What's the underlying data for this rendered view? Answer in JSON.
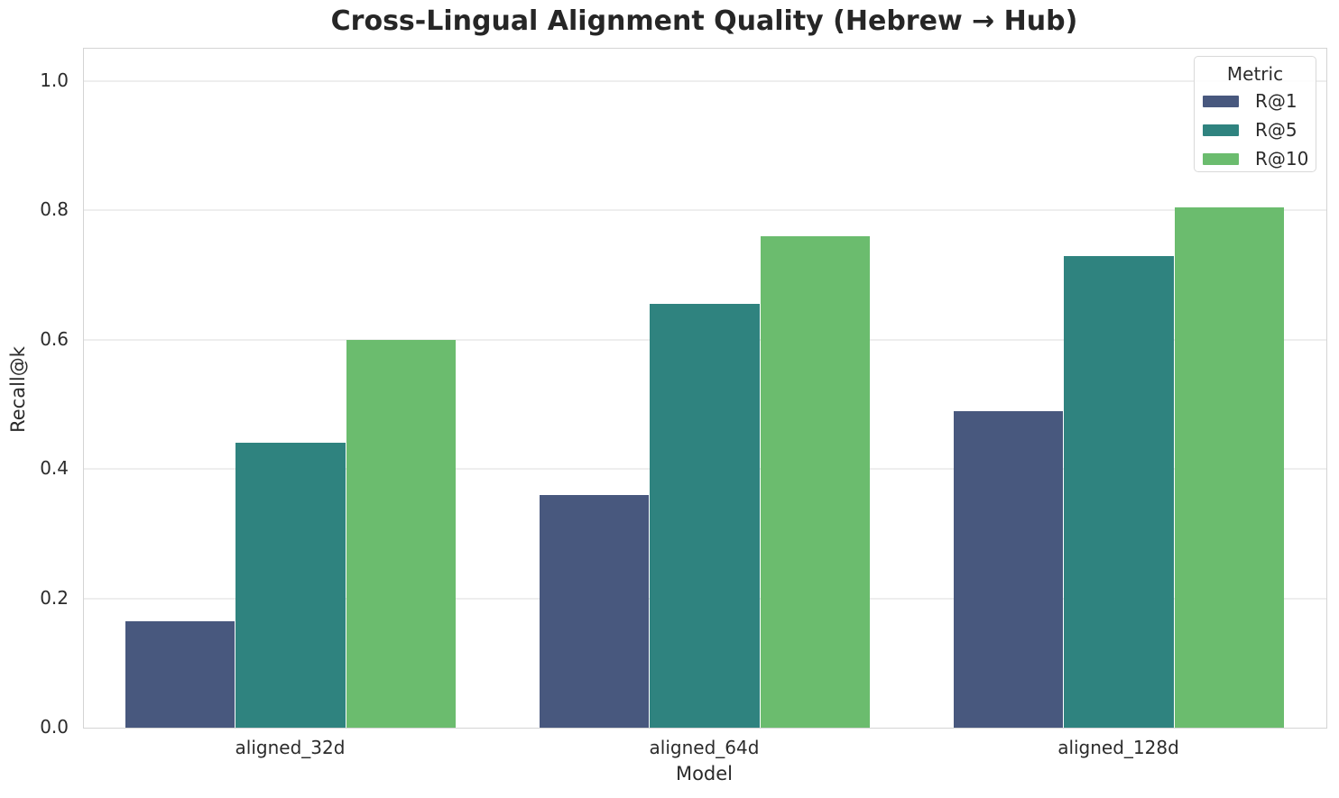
{
  "chart_data": {
    "type": "bar",
    "title": "Cross-Lingual Alignment Quality (Hebrew → Hub)",
    "xlabel": "Model",
    "ylabel": "Recall@k",
    "categories": [
      "aligned_32d",
      "aligned_64d",
      "aligned_128d"
    ],
    "series": [
      {
        "name": "R@1",
        "color": "#48587e",
        "values": [
          0.165,
          0.36,
          0.49
        ]
      },
      {
        "name": "R@5",
        "color": "#2f837f",
        "values": [
          0.44,
          0.655,
          0.73
        ]
      },
      {
        "name": "R@10",
        "color": "#6bbc6e",
        "values": [
          0.6,
          0.76,
          0.805
        ]
      }
    ],
    "ylim": [
      0,
      1.05
    ],
    "yticks": [
      0.0,
      0.2,
      0.4,
      0.6,
      0.8,
      1.0
    ],
    "ytick_labels": [
      "0.0",
      "0.2",
      "0.4",
      "0.6",
      "0.8",
      "1.0"
    ],
    "legend_title": "Metric",
    "legend_position": "upper right",
    "grid": "horizontal",
    "bar_group_width_fraction": 0.8
  }
}
